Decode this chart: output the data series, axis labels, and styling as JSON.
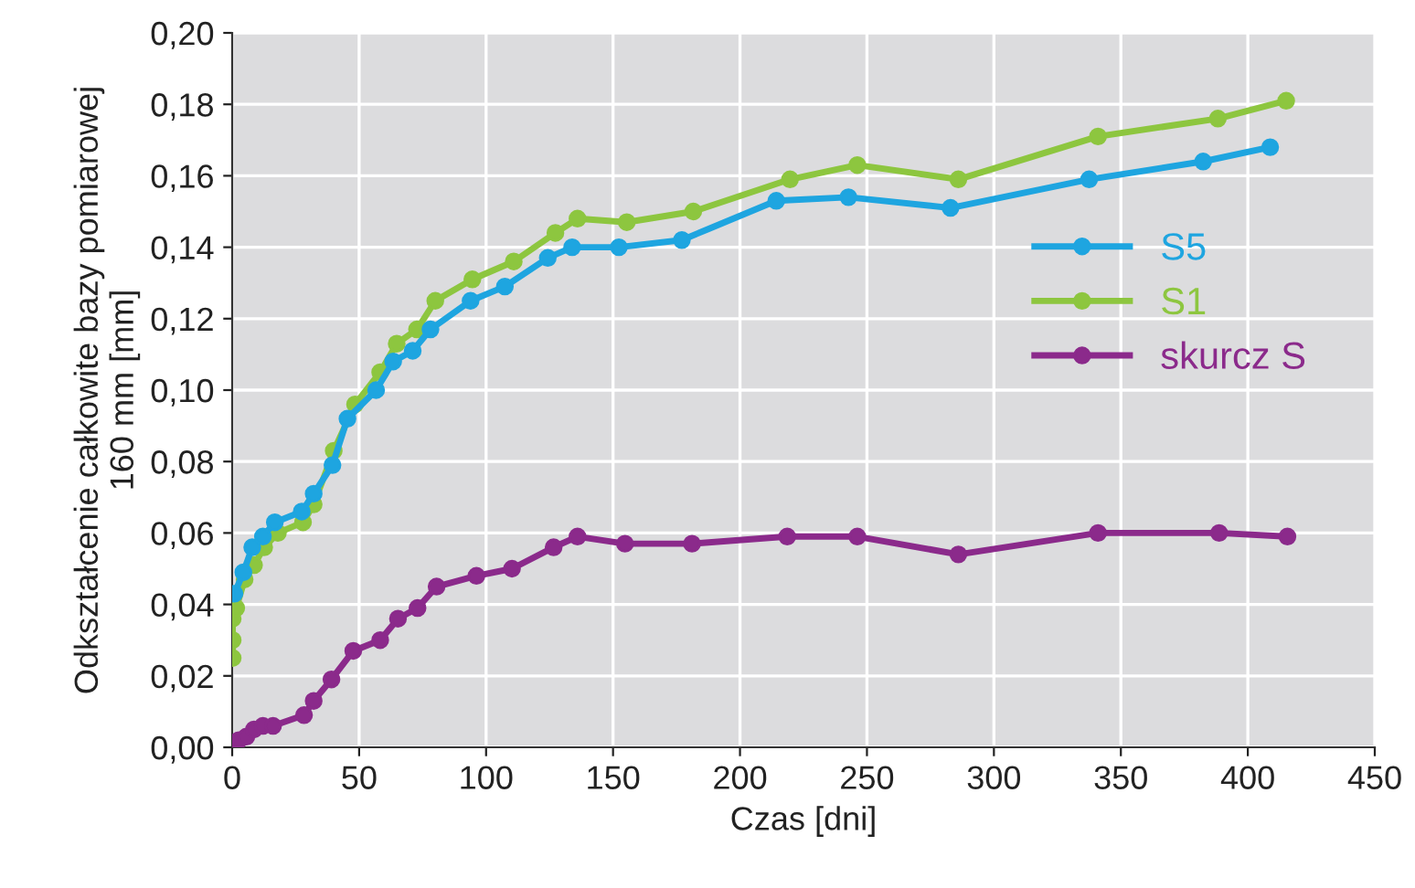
{
  "chart_data": {
    "type": "line",
    "xlabel": "Czas [dni]",
    "ylabel": "Odkształcenie całkowite bazy pomiarowej\n160 mm [mm]",
    "xlim": [
      0,
      450
    ],
    "xticks": [
      0,
      50,
      100,
      150,
      200,
      250,
      300,
      350,
      400,
      450
    ],
    "ylim": [
      0,
      0.2
    ],
    "yticks": [
      {
        "value": 0,
        "label": "0,00"
      },
      {
        "value": 0.02,
        "label": "0,02"
      },
      {
        "value": 0.04,
        "label": "0,04"
      },
      {
        "value": 0.06,
        "label": "0,06"
      },
      {
        "value": 0.08,
        "label": "0,08"
      },
      {
        "value": 0.1,
        "label": "0,10"
      },
      {
        "value": 0.12,
        "label": "0,12"
      },
      {
        "value": 0.14,
        "label": "0,14"
      },
      {
        "value": 0.16,
        "label": "0,16"
      },
      {
        "value": 0.18,
        "label": "0,18"
      },
      {
        "value": 0.2,
        "label": "0,20"
      }
    ],
    "grid": true,
    "legend": "right",
    "marker": "circle",
    "line_style": "solid",
    "series": [
      {
        "name": "S5",
        "color": "#1ea5e0",
        "x": [
          0.9,
          4.4,
          7.9,
          12.1,
          16.8,
          27.4,
          32.1,
          39.5,
          45.4,
          56.7,
          63.4,
          71.1,
          78.1,
          93.9,
          107.4,
          124.3,
          133.9,
          152.3,
          177.1,
          214.3,
          242.7,
          282.9,
          337.5,
          382.4,
          408.8
        ],
        "values": [
          0.043,
          0.049,
          0.056,
          0.059,
          0.063,
          0.066,
          0.071,
          0.079,
          0.092,
          0.1,
          0.108,
          0.111,
          0.117,
          0.125,
          0.129,
          0.137,
          0.14,
          0.14,
          0.142,
          0.153,
          0.154,
          0.151,
          0.159,
          0.164,
          0.168
        ]
      },
      {
        "name": "S1",
        "color": "#8dc63f",
        "x": [
          0.2,
          0.2,
          0.2,
          1.6,
          4.9,
          8.6,
          12.6,
          18,
          27.9,
          32.1,
          40,
          48.4,
          58.3,
          64.8,
          72.8,
          80,
          94.6,
          110.9,
          127.3,
          136,
          155.4,
          181.6,
          219.7,
          246.2,
          286,
          341,
          388.2,
          415.1
        ],
        "values": [
          0.025,
          0.03,
          0.036,
          0.039,
          0.047,
          0.051,
          0.056,
          0.06,
          0.063,
          0.068,
          0.083,
          0.096,
          0.105,
          0.113,
          0.117,
          0.125,
          0.131,
          0.136,
          0.144,
          0.148,
          0.147,
          0.15,
          0.159,
          0.163,
          0.159,
          0.171,
          0.176,
          0.181
        ]
      },
      {
        "name": "skurcz S",
        "color": "#8b2a8b",
        "x": [
          0.2,
          2.6,
          5.6,
          8.6,
          12.1,
          16.1,
          28.3,
          32.1,
          39.1,
          47.7,
          58.3,
          65.3,
          73,
          80.5,
          96.2,
          110.2,
          126.6,
          136,
          154.7,
          181.1,
          218.6,
          246.2,
          286,
          341,
          388.7,
          415.6
        ],
        "values": [
          0.0,
          0.002,
          0.003,
          0.005,
          0.006,
          0.006,
          0.009,
          0.013,
          0.019,
          0.027,
          0.03,
          0.036,
          0.039,
          0.045,
          0.048,
          0.05,
          0.056,
          0.059,
          0.057,
          0.057,
          0.059,
          0.059,
          0.054,
          0.06,
          0.06,
          0.059
        ]
      }
    ]
  }
}
